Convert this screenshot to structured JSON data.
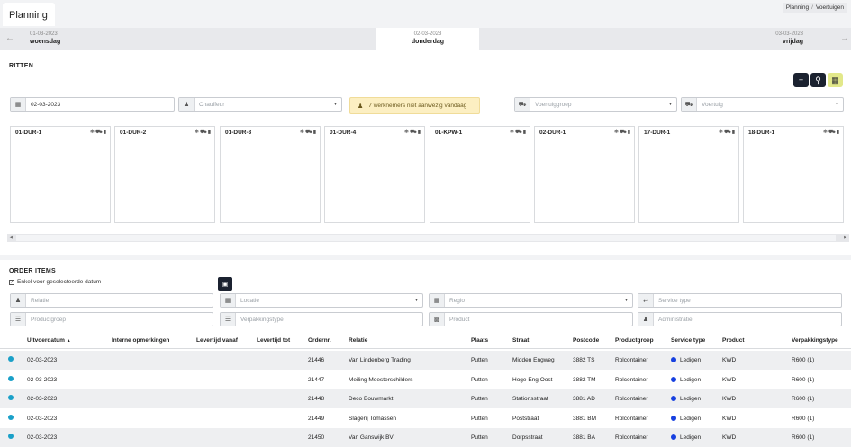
{
  "header": {
    "title": "Planning",
    "breadcrumb": [
      "Planning",
      "Voertuigen"
    ]
  },
  "daynav": {
    "prev": {
      "date": "01-03-2023",
      "name": "woensdag"
    },
    "current": {
      "date": "02-03-2023",
      "name": "donderdag"
    },
    "next": {
      "date": "03-03-2023",
      "name": "vrijdag"
    }
  },
  "ritten": {
    "title": "RITTEN",
    "date_value": "02-03-2023",
    "chauffeur_placeholder": "Chauffeur",
    "alert": "7 werknemers niet aanwezig vandaag",
    "voertuiggroep_placeholder": "Voertuiggroep",
    "voertuig_placeholder": "Voertuig",
    "columns": [
      "01-DUR-1",
      "01-DUR-2",
      "01-DUR-3",
      "01-DUR-4",
      "01-KPW-1",
      "02-DUR-1",
      "17-DUR-1",
      "18-DUR-1"
    ]
  },
  "order_items": {
    "title": "ORDER ITEMS",
    "checkbox_label": "Enkel voor geselecteerde datum",
    "filters": {
      "relatie": "Relatie",
      "locatie": "Locatie",
      "regio": "Regio",
      "service_type": "Service type",
      "productgroep": "Productgroep",
      "verpakkingstype": "Verpakkingstype",
      "product": "Product",
      "administratie": "Administratie"
    },
    "columns": [
      "Uitvoerdatum",
      "Interne opmerkingen",
      "Levertijd vanaf",
      "Levertijd tot",
      "Ordernr.",
      "Relatie",
      "Plaats",
      "Straat",
      "Postcode",
      "Productgroep",
      "Service type",
      "Product",
      "Verpakkingstype"
    ],
    "rows": [
      {
        "date": "02-03-2023",
        "ordernr": "21446",
        "relatie": "Van Lindenberg Trading",
        "plaats": "Putten",
        "straat": "Midden Engweg",
        "postcode": "3882 TS",
        "productgroep": "Rolcontainer",
        "service": "Ledigen",
        "product": "KWD",
        "verpakking": "R600 (1)"
      },
      {
        "date": "02-03-2023",
        "ordernr": "21447",
        "relatie": "Meiling Meesterschilders",
        "plaats": "Putten",
        "straat": "Hoge Eng Oost",
        "postcode": "3882 TM",
        "productgroep": "Rolcontainer",
        "service": "Ledigen",
        "product": "KWD",
        "verpakking": "R600 (1)"
      },
      {
        "date": "02-03-2023",
        "ordernr": "21448",
        "relatie": "Deco Bouwmarkt",
        "plaats": "Putten",
        "straat": "Stationsstraat",
        "postcode": "3881 AD",
        "productgroep": "Rolcontainer",
        "service": "Ledigen",
        "product": "KWD",
        "verpakking": "R600 (1)"
      },
      {
        "date": "02-03-2023",
        "ordernr": "21449",
        "relatie": "Slagerij Tomassen",
        "plaats": "Putten",
        "straat": "Poststraat",
        "postcode": "3881 BM",
        "productgroep": "Rolcontainer",
        "service": "Ledigen",
        "product": "KWD",
        "verpakking": "R600 (1)"
      },
      {
        "date": "02-03-2023",
        "ordernr": "21450",
        "relatie": "Van Ganswijk BV",
        "plaats": "Putten",
        "straat": "Dorpsstraat",
        "postcode": "3881 BA",
        "productgroep": "Rolcontainer",
        "service": "Ledigen",
        "product": "KWD",
        "verpakking": "R600 (1)"
      }
    ]
  },
  "colors": {
    "dark_button": "#1b2230",
    "accent_yellow": "#e2e88a",
    "status_dot": "#1aa0c8",
    "service_dot": "#1740e0",
    "alert_bg": "#fcefc2"
  }
}
